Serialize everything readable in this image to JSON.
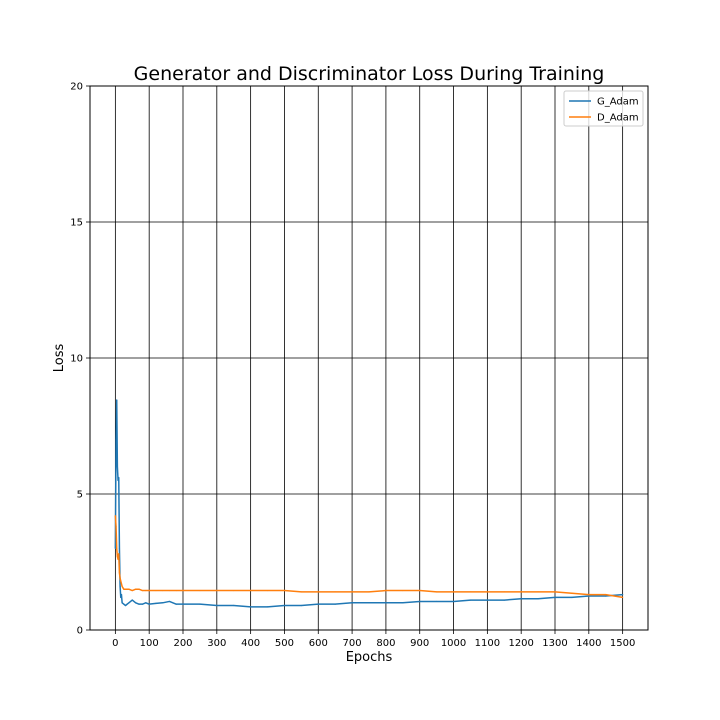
{
  "chart_data": {
    "type": "line",
    "title": "Generator and Discriminator Loss During Training",
    "xlabel": "Epochs",
    "ylabel": "Loss",
    "xlim": [
      -75,
      1575
    ],
    "ylim": [
      0,
      20
    ],
    "xticks": [
      0,
      100,
      200,
      300,
      400,
      500,
      600,
      700,
      800,
      900,
      1000,
      1100,
      1200,
      1300,
      1400,
      1500
    ],
    "yticks": [
      0,
      5,
      10,
      15,
      20
    ],
    "grid": true,
    "legend_position": "upper right",
    "series": [
      {
        "name": "G_Adam",
        "color": "#1f77b4",
        "x": [
          0,
          2,
          4,
          6,
          8,
          10,
          12,
          14,
          16,
          18,
          20,
          25,
          30,
          40,
          50,
          60,
          70,
          80,
          90,
          100,
          120,
          140,
          160,
          180,
          200,
          250,
          300,
          350,
          400,
          450,
          500,
          550,
          600,
          650,
          700,
          750,
          800,
          850,
          900,
          950,
          1000,
          1050,
          1100,
          1150,
          1200,
          1250,
          1300,
          1350,
          1400,
          1450,
          1500
        ],
        "values": [
          3.0,
          7.0,
          8.45,
          6.0,
          5.5,
          5.6,
          3.0,
          1.6,
          1.2,
          1.3,
          1.0,
          0.95,
          0.9,
          1.0,
          1.1,
          1.0,
          0.95,
          0.95,
          1.0,
          0.95,
          0.98,
          1.0,
          1.05,
          0.95,
          0.95,
          0.95,
          0.9,
          0.9,
          0.85,
          0.85,
          0.9,
          0.9,
          0.95,
          0.95,
          1.0,
          1.0,
          1.0,
          1.0,
          1.05,
          1.05,
          1.05,
          1.1,
          1.1,
          1.1,
          1.15,
          1.15,
          1.2,
          1.2,
          1.25,
          1.25,
          1.3
        ]
      },
      {
        "name": "D_Adam",
        "color": "#ff7f0e",
        "x": [
          0,
          2,
          4,
          6,
          8,
          10,
          12,
          14,
          16,
          18,
          20,
          25,
          30,
          40,
          50,
          60,
          70,
          80,
          90,
          100,
          120,
          140,
          160,
          180,
          200,
          250,
          300,
          350,
          400,
          450,
          500,
          550,
          600,
          650,
          700,
          750,
          800,
          850,
          900,
          950,
          1000,
          1050,
          1100,
          1150,
          1200,
          1250,
          1300,
          1350,
          1400,
          1450,
          1500
        ],
        "values": [
          4.2,
          3.8,
          3.0,
          2.7,
          2.6,
          2.8,
          2.1,
          1.9,
          1.8,
          1.7,
          1.6,
          1.5,
          1.5,
          1.5,
          1.45,
          1.5,
          1.5,
          1.45,
          1.45,
          1.45,
          1.45,
          1.45,
          1.45,
          1.45,
          1.45,
          1.45,
          1.45,
          1.45,
          1.45,
          1.45,
          1.45,
          1.4,
          1.4,
          1.4,
          1.4,
          1.4,
          1.45,
          1.45,
          1.45,
          1.4,
          1.4,
          1.4,
          1.4,
          1.4,
          1.4,
          1.4,
          1.4,
          1.35,
          1.3,
          1.3,
          1.2
        ]
      }
    ]
  }
}
